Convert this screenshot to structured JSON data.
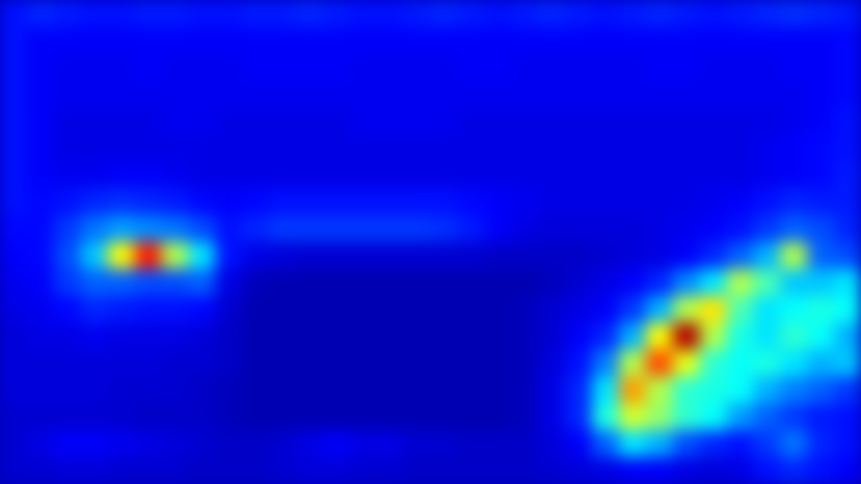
{
  "chart_data": {
    "type": "heatmap",
    "tick_labels": false,
    "xlim": [
      0,
      32
    ],
    "ylim": [
      0,
      18
    ],
    "color_range": [
      0,
      100
    ],
    "cells": [
      [
        14,
        16,
        15,
        14,
        14,
        15,
        15,
        14,
        14,
        15,
        15,
        16,
        15,
        14,
        14,
        15,
        16,
        15,
        14,
        15,
        16,
        15,
        14,
        15,
        16,
        15,
        14,
        15,
        16,
        17,
        16,
        15
      ],
      [
        14,
        12,
        12,
        12,
        12,
        12,
        12,
        12,
        12,
        12,
        12,
        12,
        12,
        12,
        12,
        12,
        12,
        12,
        12,
        12,
        12,
        12,
        12,
        12,
        12,
        12,
        12,
        12,
        12,
        12,
        12,
        13
      ],
      [
        14,
        12,
        11,
        11,
        11,
        12,
        11,
        11,
        11,
        12,
        12,
        12,
        12,
        11,
        11,
        11,
        11,
        12,
        12,
        11,
        11,
        11,
        11,
        11,
        12,
        12,
        11,
        11,
        11,
        12,
        12,
        13
      ],
      [
        14,
        12,
        11,
        11,
        11,
        11,
        11,
        11,
        11,
        11,
        11,
        11,
        11,
        11,
        11,
        11,
        11,
        11,
        11,
        11,
        11,
        11,
        11,
        11,
        11,
        11,
        11,
        11,
        11,
        11,
        12,
        13
      ],
      [
        14,
        12,
        10,
        10,
        10,
        10,
        11,
        11,
        10,
        10,
        10,
        10,
        10,
        11,
        11,
        11,
        11,
        10,
        10,
        10,
        10,
        10,
        10,
        10,
        10,
        10,
        10,
        10,
        10,
        11,
        12,
        14
      ],
      [
        14,
        12,
        10,
        10,
        10,
        10,
        10,
        10,
        10,
        10,
        10,
        10,
        10,
        10,
        10,
        10,
        10,
        10,
        10,
        10,
        10,
        10,
        10,
        10,
        10,
        10,
        10,
        10,
        11,
        12,
        13,
        14
      ],
      [
        14,
        12,
        11,
        11,
        12,
        12,
        11,
        10,
        10,
        10,
        10,
        10,
        10,
        10,
        10,
        10,
        10,
        10,
        10,
        10,
        10,
        10,
        10,
        10,
        10,
        10,
        10,
        10,
        11,
        12,
        13,
        15
      ],
      [
        14,
        13,
        14,
        16,
        17,
        16,
        15,
        13,
        12,
        13,
        14,
        14,
        14,
        14,
        14,
        14,
        14,
        13,
        12,
        11,
        10,
        10,
        10,
        10,
        10,
        10,
        11,
        12,
        14,
        16,
        15,
        15
      ],
      [
        13,
        13,
        18,
        24,
        28,
        26,
        24,
        20,
        14,
        16,
        18,
        18,
        18,
        18,
        18,
        18,
        17,
        15,
        12,
        10,
        9,
        9,
        9,
        9,
        10,
        11,
        12,
        14,
        18,
        22,
        20,
        16
      ],
      [
        12,
        13,
        20,
        32,
        62,
        85,
        55,
        35,
        14,
        10,
        9,
        8,
        8,
        8,
        8,
        8,
        8,
        8,
        7,
        7,
        7,
        7,
        8,
        9,
        10,
        12,
        16,
        22,
        30,
        55,
        22,
        20
      ],
      [
        11,
        12,
        18,
        22,
        22,
        20,
        20,
        22,
        10,
        6,
        5,
        5,
        5,
        5,
        5,
        5,
        5,
        5,
        5,
        5,
        6,
        8,
        10,
        12,
        16,
        26,
        35,
        55,
        45,
        32,
        32,
        35
      ],
      [
        10,
        11,
        13,
        16,
        15,
        14,
        14,
        13,
        8,
        5,
        5,
        5,
        5,
        5,
        5,
        5,
        5,
        5,
        5,
        6,
        8,
        10,
        12,
        18,
        30,
        55,
        65,
        45,
        35,
        38,
        40,
        38
      ],
      [
        9,
        10,
        10,
        11,
        10,
        10,
        10,
        9,
        7,
        5,
        5,
        5,
        5,
        5,
        5,
        5,
        5,
        5,
        5,
        6,
        8,
        12,
        16,
        30,
        62,
        95,
        55,
        40,
        35,
        42,
        38,
        30
      ],
      [
        9,
        9,
        9,
        9,
        9,
        9,
        8,
        8,
        7,
        5,
        5,
        5,
        5,
        5,
        5,
        5,
        5,
        5,
        5,
        6,
        9,
        14,
        25,
        55,
        80,
        60,
        42,
        38,
        40,
        35,
        30,
        32
      ],
      [
        9,
        9,
        9,
        9,
        8,
        8,
        8,
        7,
        6,
        5,
        5,
        5,
        5,
        5,
        5,
        5,
        5,
        5,
        5,
        6,
        10,
        16,
        35,
        72,
        55,
        42,
        40,
        38,
        30,
        25,
        22,
        18
      ],
      [
        8,
        8,
        8,
        8,
        8,
        7,
        7,
        7,
        6,
        5,
        5,
        5,
        5,
        5,
        5,
        5,
        5,
        5,
        5,
        6,
        10,
        16,
        40,
        58,
        52,
        42,
        38,
        28,
        22,
        18,
        15,
        14
      ],
      [
        8,
        10,
        12,
        12,
        11,
        10,
        9,
        8,
        7,
        7,
        8,
        10,
        12,
        10,
        10,
        8,
        8,
        7,
        7,
        7,
        9,
        12,
        22,
        35,
        30,
        20,
        16,
        14,
        18,
        24,
        16,
        14
      ],
      [
        8,
        8,
        9,
        9,
        8,
        8,
        8,
        7,
        7,
        7,
        8,
        9,
        9,
        8,
        8,
        7,
        7,
        7,
        7,
        7,
        8,
        9,
        10,
        12,
        12,
        10,
        9,
        10,
        14,
        16,
        14,
        12
      ]
    ]
  }
}
